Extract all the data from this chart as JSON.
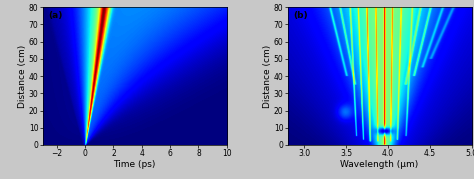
{
  "fig_width": 4.74,
  "fig_height": 1.79,
  "dpi": 100,
  "bg_color": "#00008B",
  "panel_a": {
    "label": "(a)",
    "xlabel": "Time (ps)",
    "ylabel": "Distance (cm)",
    "xlim": [
      -3,
      10
    ],
    "ylim": [
      0,
      80
    ],
    "xticks": [
      -2,
      0,
      2,
      4,
      6,
      8,
      10
    ],
    "yticks": [
      0,
      10,
      20,
      30,
      40,
      50,
      60,
      70,
      80
    ]
  },
  "panel_b": {
    "label": "(b)",
    "xlabel": "Wavelength (μm)",
    "ylabel": "Distance (cm)",
    "xlim": [
      2.8,
      5.0
    ],
    "ylim": [
      0,
      80
    ],
    "xticks": [
      3.0,
      3.5,
      4.0,
      4.5,
      5.0
    ],
    "yticks": [
      0,
      10,
      20,
      30,
      40,
      50,
      60,
      70,
      80
    ]
  },
  "colormap": "jet",
  "tick_fontsize": 5.5,
  "label_fontsize": 6.5
}
